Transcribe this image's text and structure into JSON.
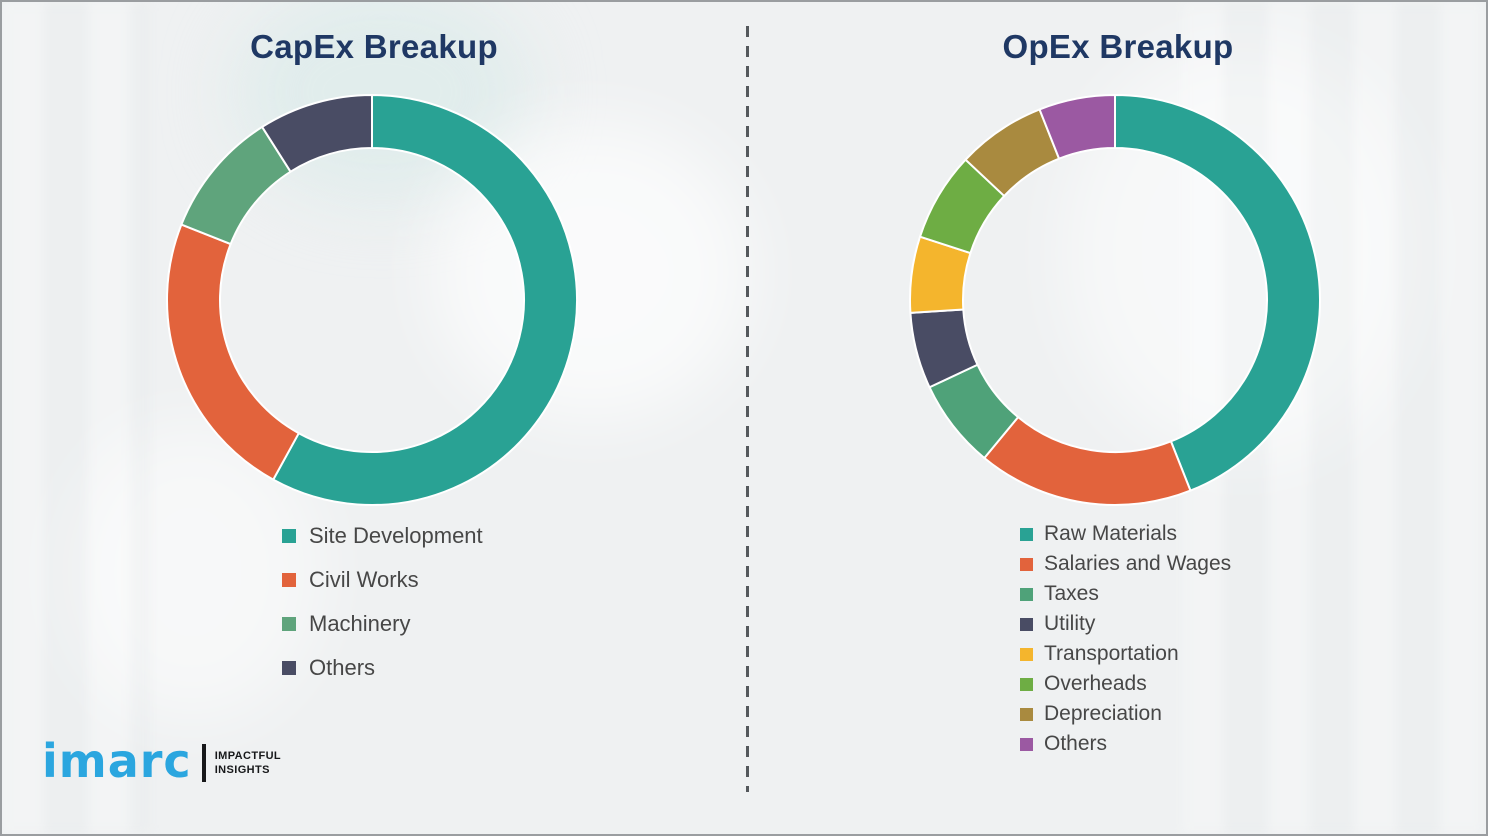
{
  "page": {
    "background_color": "#EFF1F2",
    "border_color": "#9A9DA0",
    "divider_color": "#54585C"
  },
  "chart_data": [
    {
      "type": "pie",
      "style": "donut",
      "title": "CapEx Breakup",
      "title_color": "#1F3864",
      "categories": [
        "Site Development",
        "Civil Works",
        "Machinery",
        "Others"
      ],
      "values": [
        58,
        23,
        10,
        9
      ],
      "unit": "%",
      "colors": [
        "#29A294",
        "#E2633C",
        "#5FA47C",
        "#494C64"
      ],
      "start_angle_deg": 0,
      "direction": "clockwise",
      "legend_position": "below-left",
      "legend_text_color": "#474747"
    },
    {
      "type": "pie",
      "style": "donut",
      "title": "OpEx Breakup",
      "title_color": "#1F3864",
      "categories": [
        "Raw Materials",
        "Salaries and Wages",
        "Taxes",
        "Utility",
        "Transportation",
        "Overheads",
        "Depreciation",
        "Others"
      ],
      "values": [
        44,
        17,
        7,
        6,
        6,
        7,
        7,
        6
      ],
      "unit": "%",
      "colors": [
        "#29A294",
        "#E2633C",
        "#4FA279",
        "#494C64",
        "#F4B52D",
        "#6EAD44",
        "#A98A3F",
        "#9B59A2"
      ],
      "start_angle_deg": 0,
      "direction": "clockwise",
      "legend_position": "below-left",
      "legend_text_color": "#474747"
    }
  ],
  "logo": {
    "brand": "imarc",
    "tagline_line1": "IMPACTFUL",
    "tagline_line2": "INSIGHTS",
    "brand_color": "#2BA6DF"
  }
}
